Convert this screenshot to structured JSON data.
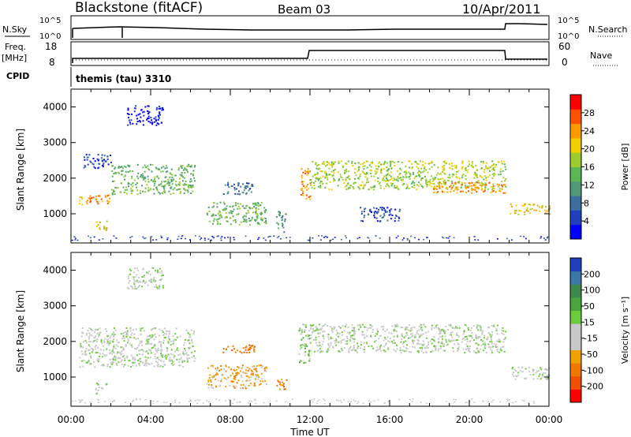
{
  "header": {
    "station": "Blackstone (fitACF)",
    "beam": "Beam 03",
    "date": "10/Apr/2011"
  },
  "scalars": {
    "nsky_label": "N.Sky",
    "nsky_ticks": [
      "10^5",
      "10^0"
    ],
    "nsearch_label": "N.Search",
    "nsearch_ticks": [
      "10^5",
      "10^0"
    ],
    "freq_label": "Freq.",
    "freq_unit": "[MHz]",
    "freq_ticks": [
      "18",
      "8"
    ],
    "nave_label": "Nave",
    "nave_ticks": [
      "60",
      "0"
    ],
    "cpid_label": "CPID",
    "cpid_value": "themis (tau) 3310"
  },
  "x_axis": {
    "label": "Time UT",
    "ticks": [
      "00:00",
      "04:00",
      "08:00",
      "12:00",
      "16:00",
      "20:00",
      "00:00"
    ]
  },
  "chart_data": [
    {
      "type": "heatmap",
      "quantity": "Power",
      "ylabel": "Slant Range [km]",
      "xlabel": "Time UT",
      "yticks": [
        "1000",
        "2000",
        "3000",
        "4000"
      ],
      "ylim": [
        180,
        4500
      ],
      "xlim": [
        0,
        24
      ],
      "colorbar": {
        "label": "Power [dB]",
        "ticks": [
          "4",
          "8",
          "12",
          "16",
          "20",
          "24",
          "28"
        ],
        "colors": [
          "#0000ff",
          "#1f3fbf",
          "#3c6ea0",
          "#4f9a78",
          "#59b852",
          "#9ccc2e",
          "#f2d000",
          "#ff9a00",
          "#ff5000",
          "#ff0000"
        ]
      },
      "bands": [
        {
          "t0": 0.4,
          "t1": 2.0,
          "r0": 1280,
          "r1": 1560,
          "level": 7
        },
        {
          "t0": 2.0,
          "t1": 6.2,
          "r0": 1560,
          "r1": 2400,
          "level": 4
        },
        {
          "t0": 1.2,
          "t1": 1.8,
          "r0": 520,
          "r1": 820,
          "level": 6
        },
        {
          "t0": 0.6,
          "t1": 2.0,
          "r0": 2300,
          "r1": 2700,
          "level": 1
        },
        {
          "t0": 2.8,
          "t1": 4.6,
          "r0": 3500,
          "r1": 4050,
          "level": 0
        },
        {
          "t0": 6.8,
          "t1": 9.8,
          "r0": 700,
          "r1": 1350,
          "level": 4
        },
        {
          "t0": 7.6,
          "t1": 9.2,
          "r0": 1550,
          "r1": 1900,
          "level": 2
        },
        {
          "t0": 11.5,
          "t1": 12.0,
          "r0": 1400,
          "r1": 2300,
          "level": 7
        },
        {
          "t0": 10.3,
          "t1": 10.8,
          "r0": 500,
          "r1": 1100,
          "level": 3
        },
        {
          "t0": 12.0,
          "t1": 21.8,
          "r0": 1700,
          "r1": 2500,
          "level": 5
        },
        {
          "t0": 18.0,
          "t1": 21.8,
          "r0": 1600,
          "r1": 1900,
          "level": 7
        },
        {
          "t0": 22.0,
          "t1": 24.0,
          "r0": 1000,
          "r1": 1300,
          "level": 6
        },
        {
          "t0": 14.5,
          "t1": 16.5,
          "r0": 800,
          "r1": 1200,
          "level": 1
        }
      ]
    },
    {
      "type": "heatmap",
      "quantity": "Velocity",
      "ylabel": "Slant Range [km]",
      "xlabel": "Time UT",
      "yticks": [
        "1000",
        "2000",
        "3000",
        "4000"
      ],
      "ylim": [
        180,
        4500
      ],
      "xlim": [
        0,
        24
      ],
      "colorbar": {
        "label": "Velocity [m s⁻¹]",
        "ticks": [
          "200",
          "100",
          "50",
          "15",
          "-15",
          "-50",
          "-100",
          "-200"
        ],
        "colors": [
          "#1f3fbf",
          "#3a78a8",
          "#3c8a4c",
          "#49a63c",
          "#6ccd3c",
          "#c8c8c8",
          "#c8c8c8",
          "#f0a000",
          "#f07800",
          "#f05000",
          "#ff0000"
        ]
      },
      "bands": [
        {
          "t0": 0.4,
          "t1": 6.2,
          "r0": 1300,
          "r1": 2400,
          "level": 5
        },
        {
          "t0": 1.2,
          "t1": 1.8,
          "r0": 550,
          "r1": 850,
          "level": 5
        },
        {
          "t0": 2.8,
          "t1": 4.6,
          "r0": 3500,
          "r1": 4100,
          "level": 5
        },
        {
          "t0": 6.8,
          "t1": 9.8,
          "r0": 700,
          "r1": 1350,
          "level": 7
        },
        {
          "t0": 7.6,
          "t1": 9.2,
          "r0": 1700,
          "r1": 1950,
          "level": 8
        },
        {
          "t0": 11.4,
          "t1": 12.0,
          "r0": 1400,
          "r1": 2500,
          "level": 4
        },
        {
          "t0": 10.3,
          "t1": 10.8,
          "r0": 600,
          "r1": 1000,
          "level": 8
        },
        {
          "t0": 12.0,
          "t1": 21.8,
          "r0": 1700,
          "r1": 2500,
          "level": 5
        },
        {
          "t0": 22.0,
          "t1": 24.0,
          "r0": 950,
          "r1": 1300,
          "level": 5
        }
      ]
    }
  ]
}
